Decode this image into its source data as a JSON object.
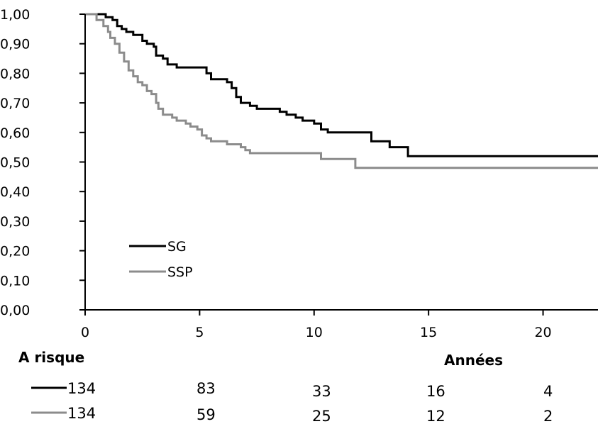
{
  "chart_data": {
    "type": "line",
    "xlabel": "Années",
    "ylabel": "",
    "xlim": [
      0,
      22.4
    ],
    "ylim": [
      0,
      1
    ],
    "x_ticks": [
      "0",
      "5",
      "10",
      "15",
      "20"
    ],
    "x_tick_values": [
      0,
      5,
      10,
      15,
      20
    ],
    "y_ticks": [
      "0,00",
      "0,10",
      "0,20",
      "0,30",
      "0,40",
      "0,50",
      "0,60",
      "0,70",
      "0,80",
      "0,90",
      "1,00"
    ],
    "y_tick_values": [
      0,
      0.1,
      0.2,
      0.3,
      0.4,
      0.5,
      0.6,
      0.7,
      0.8,
      0.9,
      1.0
    ],
    "grid": false,
    "legend_position": "bottom-left",
    "series": [
      {
        "name": "SG",
        "color": "#000000",
        "step": true,
        "points": [
          [
            0,
            1.0
          ],
          [
            0.9,
            0.99
          ],
          [
            1.2,
            0.98
          ],
          [
            1.4,
            0.96
          ],
          [
            1.6,
            0.95
          ],
          [
            1.8,
            0.94
          ],
          [
            2.1,
            0.93
          ],
          [
            2.5,
            0.91
          ],
          [
            2.7,
            0.9
          ],
          [
            3.0,
            0.89
          ],
          [
            3.1,
            0.86
          ],
          [
            3.4,
            0.85
          ],
          [
            3.6,
            0.83
          ],
          [
            4.0,
            0.82
          ],
          [
            5.3,
            0.8
          ],
          [
            5.5,
            0.78
          ],
          [
            6.2,
            0.77
          ],
          [
            6.4,
            0.75
          ],
          [
            6.6,
            0.72
          ],
          [
            6.8,
            0.7
          ],
          [
            7.2,
            0.69
          ],
          [
            7.5,
            0.68
          ],
          [
            8.5,
            0.67
          ],
          [
            8.8,
            0.66
          ],
          [
            9.2,
            0.65
          ],
          [
            9.5,
            0.64
          ],
          [
            10.0,
            0.63
          ],
          [
            10.3,
            0.61
          ],
          [
            10.6,
            0.6
          ],
          [
            12.5,
            0.57
          ],
          [
            13.3,
            0.55
          ],
          [
            14.1,
            0.52
          ],
          [
            22.4,
            0.52
          ]
        ]
      },
      {
        "name": "SSP",
        "color": "#8c8c8c",
        "step": true,
        "points": [
          [
            0,
            1.0
          ],
          [
            0.5,
            0.98
          ],
          [
            0.8,
            0.96
          ],
          [
            1.0,
            0.94
          ],
          [
            1.1,
            0.92
          ],
          [
            1.3,
            0.9
          ],
          [
            1.5,
            0.87
          ],
          [
            1.7,
            0.84
          ],
          [
            1.9,
            0.81
          ],
          [
            2.1,
            0.79
          ],
          [
            2.3,
            0.77
          ],
          [
            2.5,
            0.76
          ],
          [
            2.7,
            0.74
          ],
          [
            2.9,
            0.73
          ],
          [
            3.1,
            0.7
          ],
          [
            3.2,
            0.68
          ],
          [
            3.4,
            0.66
          ],
          [
            3.8,
            0.65
          ],
          [
            4.0,
            0.64
          ],
          [
            4.4,
            0.63
          ],
          [
            4.6,
            0.62
          ],
          [
            4.9,
            0.61
          ],
          [
            5.1,
            0.59
          ],
          [
            5.3,
            0.58
          ],
          [
            5.5,
            0.57
          ],
          [
            6.2,
            0.56
          ],
          [
            6.8,
            0.55
          ],
          [
            7.0,
            0.54
          ],
          [
            7.2,
            0.53
          ],
          [
            10.3,
            0.51
          ],
          [
            11.8,
            0.48
          ],
          [
            22.4,
            0.48
          ]
        ]
      }
    ]
  },
  "risk_table": {
    "title": "A risque",
    "rows": [
      {
        "series": "SG",
        "values": [
          "134",
          "83",
          "33",
          "16",
          "4"
        ]
      },
      {
        "series": "SSP",
        "values": [
          "134",
          "59",
          "25",
          "12",
          "2"
        ]
      }
    ]
  }
}
